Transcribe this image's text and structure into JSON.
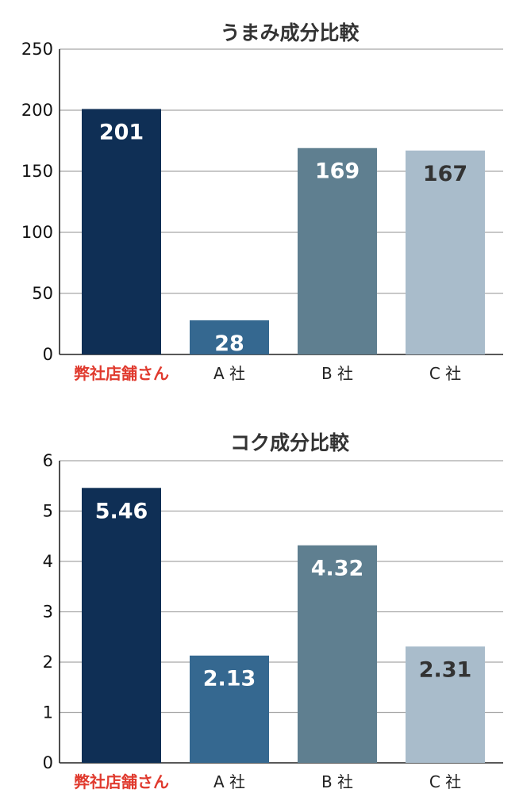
{
  "chart_data": [
    {
      "type": "bar",
      "title": "うまみ成分比較",
      "categories": [
        "弊社店舗さん",
        "A 社",
        "B 社",
        "C 社"
      ],
      "values": [
        201,
        28,
        169,
        167
      ],
      "data_labels": [
        "201",
        "28",
        "169",
        "167"
      ],
      "ylim": [
        0,
        250
      ],
      "yticks": [
        0,
        50,
        100,
        150,
        200,
        250
      ],
      "ytick_labels": [
        "0",
        "50",
        "100",
        "150",
        "200",
        "250"
      ],
      "grid": true,
      "highlight_category": 0,
      "bar_colors": [
        "#0f2f55",
        "#356890",
        "#5f7f90",
        "#a9bccb"
      ],
      "label_colors": [
        "#ffffff",
        "#ffffff",
        "#ffffff",
        "#333333"
      ],
      "highlight_color": "#e03a2e"
    },
    {
      "type": "bar",
      "title": "コク成分比較",
      "categories": [
        "弊社店舗さん",
        "A 社",
        "B 社",
        "C 社"
      ],
      "values": [
        5.46,
        2.13,
        4.32,
        2.31
      ],
      "data_labels": [
        "5.46",
        "2.13",
        "4.32",
        "2.31"
      ],
      "ylim": [
        0,
        6
      ],
      "yticks": [
        0,
        1,
        2,
        3,
        4,
        5,
        6
      ],
      "ytick_labels": [
        "0",
        "1",
        "2",
        "3",
        "4",
        "5",
        "6"
      ],
      "grid": true,
      "highlight_category": 0,
      "bar_colors": [
        "#0f2f55",
        "#356890",
        "#5f7f90",
        "#a9bccb"
      ],
      "label_colors": [
        "#ffffff",
        "#ffffff",
        "#ffffff",
        "#333333"
      ],
      "highlight_color": "#e03a2e"
    }
  ]
}
